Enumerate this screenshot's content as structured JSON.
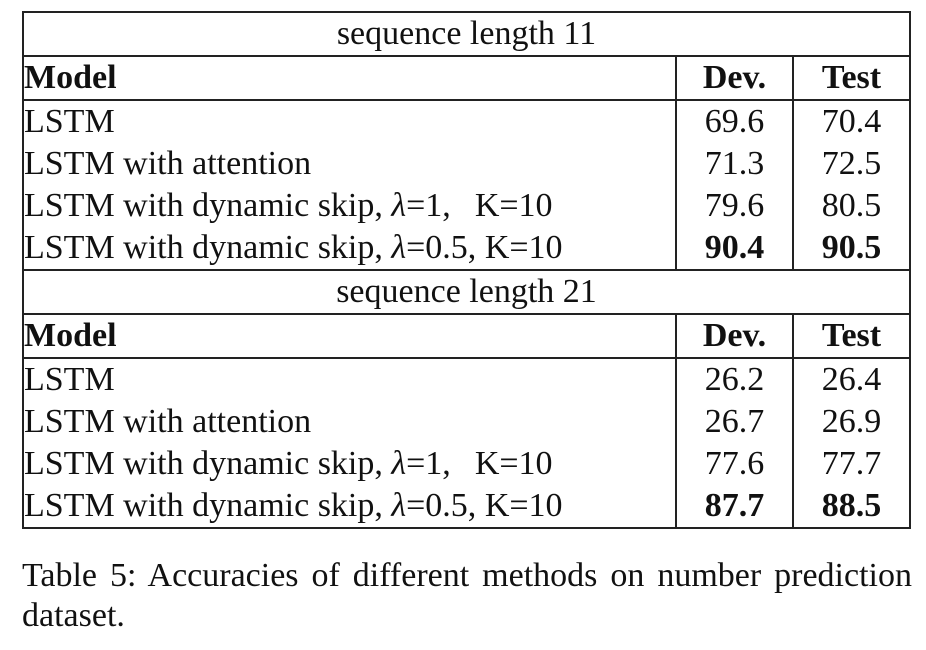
{
  "table": {
    "sections": [
      {
        "title": "sequence length 11",
        "headers": {
          "model": "Model",
          "dev": "Dev.",
          "test": "Test"
        },
        "rows": [
          {
            "model": "LSTM",
            "dev": "69.6",
            "test": "70.4"
          },
          {
            "model": "LSTM with attention",
            "dev": "71.3",
            "test": "72.5"
          },
          {
            "model_prefix": "LSTM with dynamic skip, ",
            "lambda": "λ",
            "model_mid": "=1,",
            "model_suffix": "K=10",
            "dev": "79.6",
            "test": "80.5"
          },
          {
            "model_prefix": "LSTM with dynamic skip, ",
            "lambda": "λ",
            "model_mid": "=0.5, ",
            "model_suffix": "K=10",
            "dev": "90.4",
            "test": "90.5",
            "best": true
          }
        ]
      },
      {
        "title": "sequence length 21",
        "headers": {
          "model": "Model",
          "dev": "Dev.",
          "test": "Test"
        },
        "rows": [
          {
            "model": "LSTM",
            "dev": "26.2",
            "test": "26.4"
          },
          {
            "model": "LSTM with attention",
            "dev": "26.7",
            "test": "26.9"
          },
          {
            "model_prefix": "LSTM with dynamic skip, ",
            "lambda": "λ",
            "model_mid": "=1,",
            "model_suffix": "K=10",
            "dev": "77.6",
            "test": "77.7"
          },
          {
            "model_prefix": "LSTM with dynamic skip, ",
            "lambda": "λ",
            "model_mid": "=0.5, ",
            "model_suffix": "K=10",
            "dev": "87.7",
            "test": "88.5",
            "best": true
          }
        ]
      }
    ]
  },
  "caption": "Table 5: Accuracies of different methods on number prediction dataset."
}
